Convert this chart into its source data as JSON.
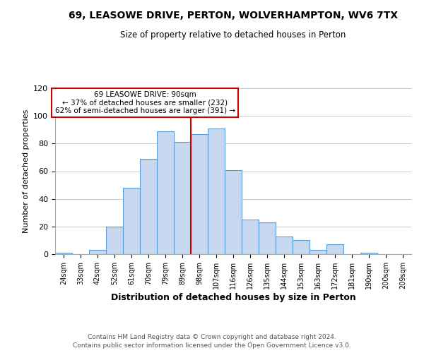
{
  "title": "69, LEASOWE DRIVE, PERTON, WOLVERHAMPTON, WV6 7TX",
  "subtitle": "Size of property relative to detached houses in Perton",
  "xlabel": "Distribution of detached houses by size in Perton",
  "ylabel": "Number of detached properties",
  "bin_labels": [
    "24sqm",
    "33sqm",
    "42sqm",
    "52sqm",
    "61sqm",
    "70sqm",
    "79sqm",
    "89sqm",
    "98sqm",
    "107sqm",
    "116sqm",
    "126sqm",
    "135sqm",
    "144sqm",
    "153sqm",
    "163sqm",
    "172sqm",
    "181sqm",
    "190sqm",
    "200sqm",
    "209sqm"
  ],
  "bar_heights": [
    1,
    0,
    3,
    20,
    48,
    69,
    89,
    81,
    87,
    91,
    61,
    25,
    23,
    13,
    10,
    3,
    7,
    0,
    1,
    0,
    0
  ],
  "bar_color": "#c5d8f0",
  "bar_edge_color": "#5b9bd5",
  "property_label": "69 LEASOWE DRIVE: 90sqm",
  "annotation_line1": "← 37% of detached houses are smaller (232)",
  "annotation_line2": "62% of semi-detached houses are larger (391) →",
  "vline_color": "#cc0000",
  "vline_x_index": 7.5,
  "annotation_box_color": "#ffffff",
  "annotation_box_edge": "#cc0000",
  "ylim": [
    0,
    120
  ],
  "yticks": [
    0,
    20,
    40,
    60,
    80,
    100,
    120
  ],
  "grid_color": "#cccccc",
  "background_color": "#ffffff",
  "footer_line1": "Contains HM Land Registry data © Crown copyright and database right 2024.",
  "footer_line2": "Contains public sector information licensed under the Open Government Licence v3.0."
}
